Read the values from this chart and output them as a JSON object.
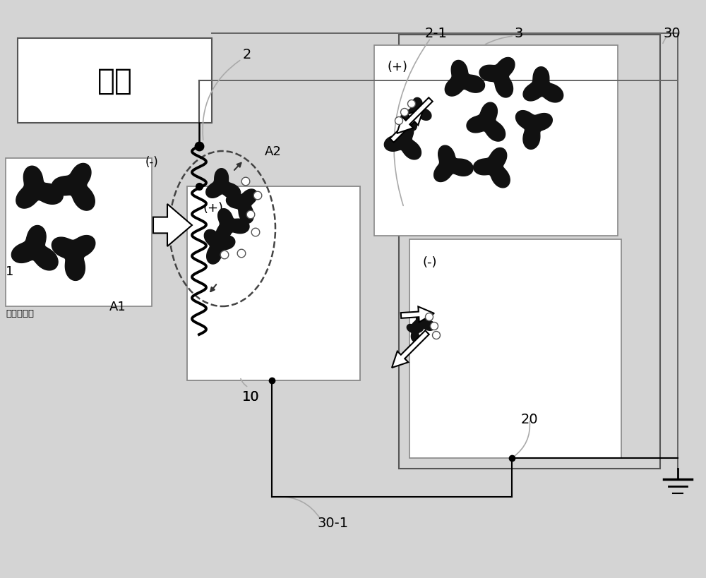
{
  "bg_color": "#d4d4d4",
  "labels": {
    "power_box": "电源",
    "contaminated_air": "被污染空气",
    "label_1": "1",
    "label_2": "2",
    "label_3": "3",
    "label_10": "10",
    "label_20": "20",
    "label_30": "30",
    "label_30_1": "30-1",
    "label_2_1": "2-1",
    "label_A1": "A1",
    "label_A2": "A2",
    "label_minus_top": "(-)",
    "label_plus_upper": "(+)",
    "label_minus_lower": "(-)",
    "label_plus_lower": "(+)"
  }
}
